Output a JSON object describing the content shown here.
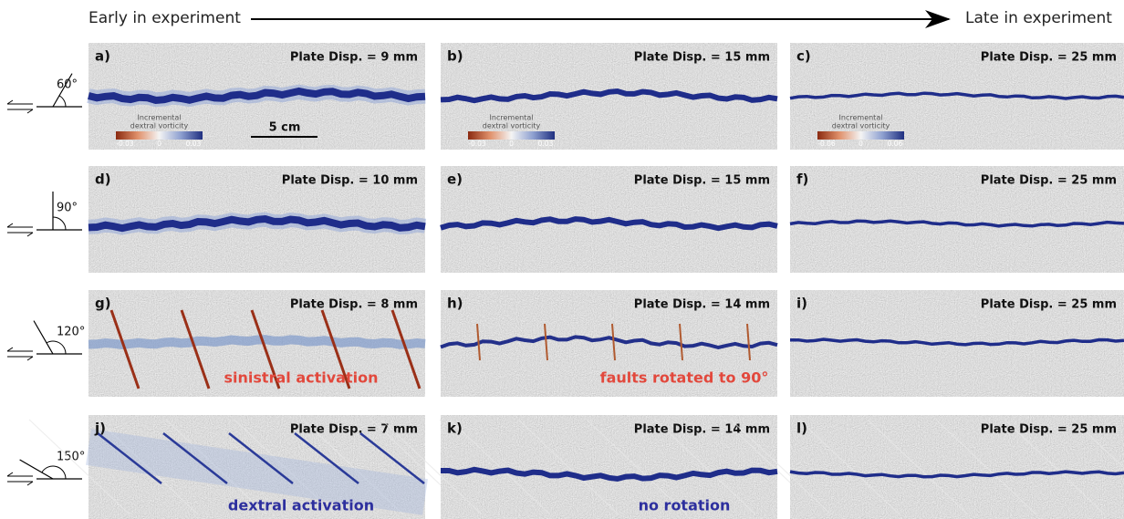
{
  "header": {
    "start": "Early in experiment",
    "end": "Late in experiment"
  },
  "rows": [
    {
      "angle": "60°",
      "panels": [
        {
          "letter": "a)",
          "displacement": "Plate Disp. = 9 mm",
          "colorbar": {
            "title": [
              "Incremental",
              "dextral vorticity"
            ],
            "ticks": [
              "-0.03",
              "0",
              "0.03"
            ]
          },
          "scale_bar": "5 cm"
        },
        {
          "letter": "b)",
          "displacement": "Plate Disp. = 15 mm",
          "colorbar": {
            "title": [
              "Incremental",
              "dextral vorticity"
            ],
            "ticks": [
              "-0.03",
              "0",
              "0.03"
            ]
          }
        },
        {
          "letter": "c)",
          "displacement": "Plate Disp. = 25 mm",
          "colorbar": {
            "title": [
              "Incremental",
              "dextral vorticity"
            ],
            "ticks": [
              "-0.06",
              "0",
              "0.06"
            ]
          }
        }
      ]
    },
    {
      "angle": "90°",
      "panels": [
        {
          "letter": "d)",
          "displacement": "Plate Disp. = 10 mm"
        },
        {
          "letter": "e)",
          "displacement": "Plate Disp. = 15 mm"
        },
        {
          "letter": "f)",
          "displacement": "Plate Disp. = 25 mm"
        }
      ]
    },
    {
      "angle": "120°",
      "panels": [
        {
          "letter": "g)",
          "displacement": "Plate Disp. = 8 mm",
          "annotation": "sinistral activation"
        },
        {
          "letter": "h)",
          "displacement": "Plate Disp. = 14 mm",
          "annotation": "faults rotated to 90°"
        },
        {
          "letter": "i)",
          "displacement": "Plate Disp. = 25 mm"
        }
      ]
    },
    {
      "angle": "150°",
      "panels": [
        {
          "letter": "j)",
          "displacement": "Plate Disp. = 7 mm",
          "annotation": "dextral activation"
        },
        {
          "letter": "k)",
          "displacement": "Plate Disp. = 14 mm",
          "annotation": "no rotation"
        },
        {
          "letter": "l)",
          "displacement": "Plate Disp. = 25 mm"
        }
      ]
    }
  ]
}
